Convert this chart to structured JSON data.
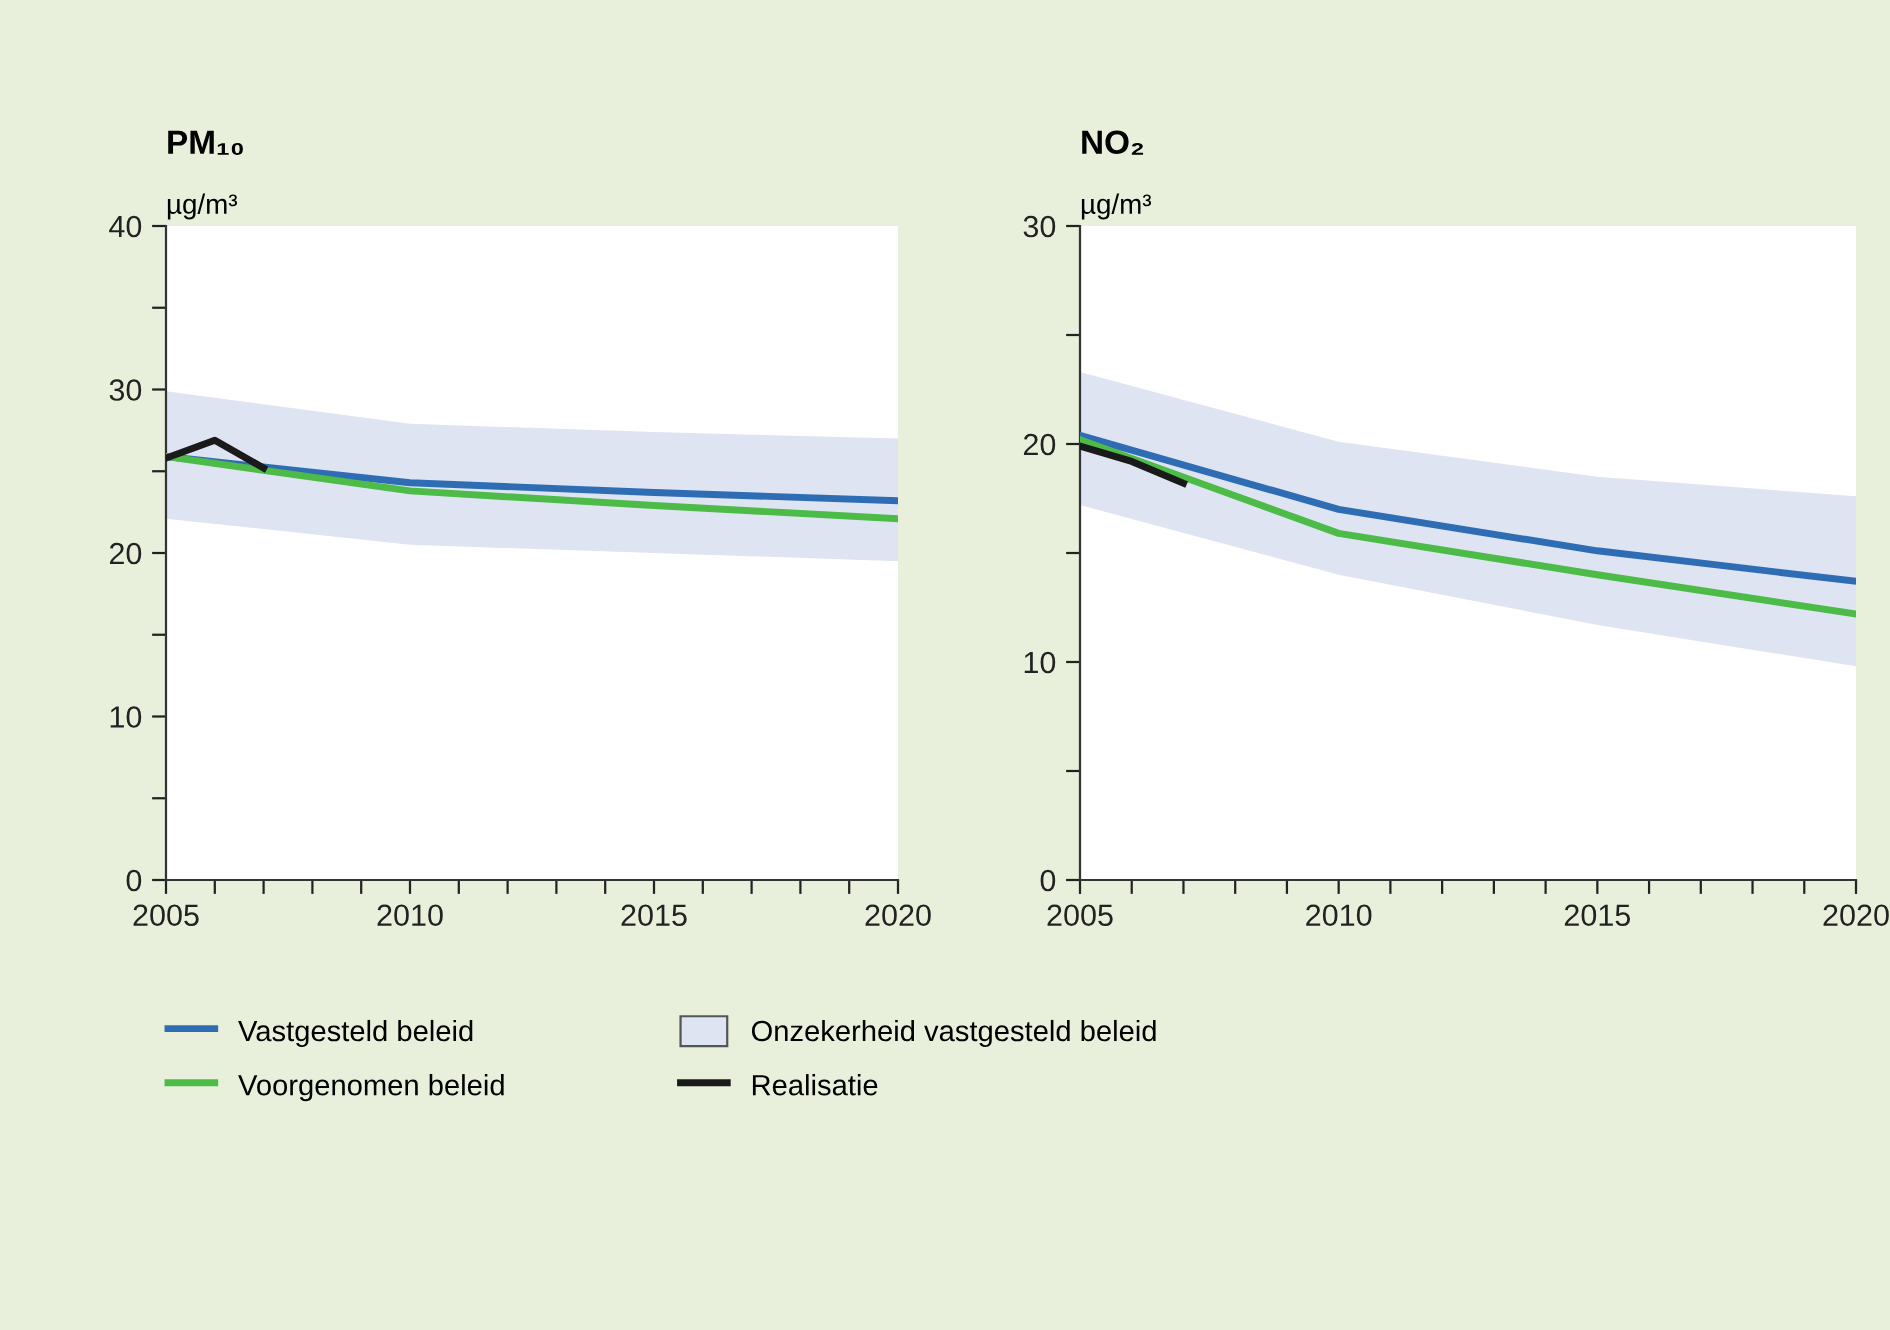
{
  "chart_data": [
    {
      "type": "line",
      "title": "PM₁₀",
      "ylabel": "µg/m³",
      "x": [
        2005,
        2010,
        2015,
        2020
      ],
      "xlim": [
        2005,
        2020
      ],
      "ylim": [
        0,
        40
      ],
      "xticks": [
        2005,
        {
          "value": 2006,
          "label": null
        },
        {
          "value": 2007,
          "label": null
        },
        {
          "value": 2008,
          "label": null
        },
        {
          "value": 2009,
          "label": null
        },
        2010,
        {
          "value": 2011,
          "label": null
        },
        {
          "value": 2012,
          "label": null
        },
        {
          "value": 2013,
          "label": null
        },
        {
          "value": 2014,
          "label": null
        },
        2015,
        {
          "value": 2016,
          "label": null
        },
        {
          "value": 2017,
          "label": null
        },
        {
          "value": 2018,
          "label": null
        },
        {
          "value": 2019,
          "label": null
        },
        2020
      ],
      "yticks": [
        0,
        {
          "value": 5,
          "label": null
        },
        10,
        {
          "value": 15,
          "label": null
        },
        20,
        {
          "value": 25,
          "label": null
        },
        30,
        {
          "value": 35,
          "label": null
        },
        40
      ],
      "grid": false,
      "legend": "bottom",
      "series": [
        {
          "name": "Vastgesteld beleid",
          "color": "#2e6db4",
          "values": [
            25.9,
            24.3,
            23.7,
            23.2
          ]
        },
        {
          "name": "Voorgenomen beleid",
          "color": "#4cbb47",
          "values": [
            25.9,
            23.8,
            22.9,
            22.1
          ]
        },
        {
          "name": "Onzekerheid vastgesteld beleid",
          "type": "area",
          "color": "#dfe4f2",
          "values": [
            null,
            null,
            null,
            null
          ],
          "lower": [
            22.1,
            20.5,
            20.0,
            19.5
          ],
          "upper": [
            29.9,
            27.9,
            27.4,
            27.0
          ]
        },
        {
          "name": "Realisatie",
          "color": "#1a1a1a",
          "x": [
            2005,
            2006,
            2007
          ],
          "values": [
            25.8,
            26.9,
            25.2
          ]
        }
      ]
    },
    {
      "type": "line",
      "title": "NO₂",
      "ylabel": "µg/m³",
      "x": [
        2005,
        2010,
        2015,
        2020
      ],
      "xlim": [
        2005,
        2020
      ],
      "ylim": [
        0,
        30
      ],
      "xticks": [
        2005,
        {
          "value": 2006,
          "label": null
        },
        {
          "value": 2007,
          "label": null
        },
        {
          "value": 2008,
          "label": null
        },
        {
          "value": 2009,
          "label": null
        },
        2010,
        {
          "value": 2011,
          "label": null
        },
        {
          "value": 2012,
          "label": null
        },
        {
          "value": 2013,
          "label": null
        },
        {
          "value": 2014,
          "label": null
        },
        2015,
        {
          "value": 2016,
          "label": null
        },
        {
          "value": 2017,
          "label": null
        },
        {
          "value": 2018,
          "label": null
        },
        {
          "value": 2019,
          "label": null
        },
        2020
      ],
      "yticks": [
        0,
        {
          "value": 5,
          "label": null
        },
        10,
        {
          "value": 15,
          "label": null
        },
        20,
        {
          "value": 25,
          "label": null
        },
        30
      ],
      "grid": false,
      "series": [
        {
          "color": "#2e6db4",
          "values": [
            20.4,
            17.0,
            15.1,
            13.7
          ]
        },
        {
          "color": "#4cbb47",
          "values": [
            20.2,
            15.9,
            14.0,
            12.2
          ]
        },
        {
          "type": "area",
          "color": "#dfe4f2",
          "values": [
            null,
            null,
            null,
            null
          ],
          "lower": [
            17.2,
            14.0,
            11.7,
            9.8
          ],
          "upper": [
            23.3,
            20.1,
            18.5,
            17.6
          ]
        },
        {
          "color": "#1a1a1a",
          "x": [
            2005,
            2006,
            2007
          ],
          "values": [
            19.9,
            19.2,
            18.2
          ]
        }
      ]
    }
  ]
}
